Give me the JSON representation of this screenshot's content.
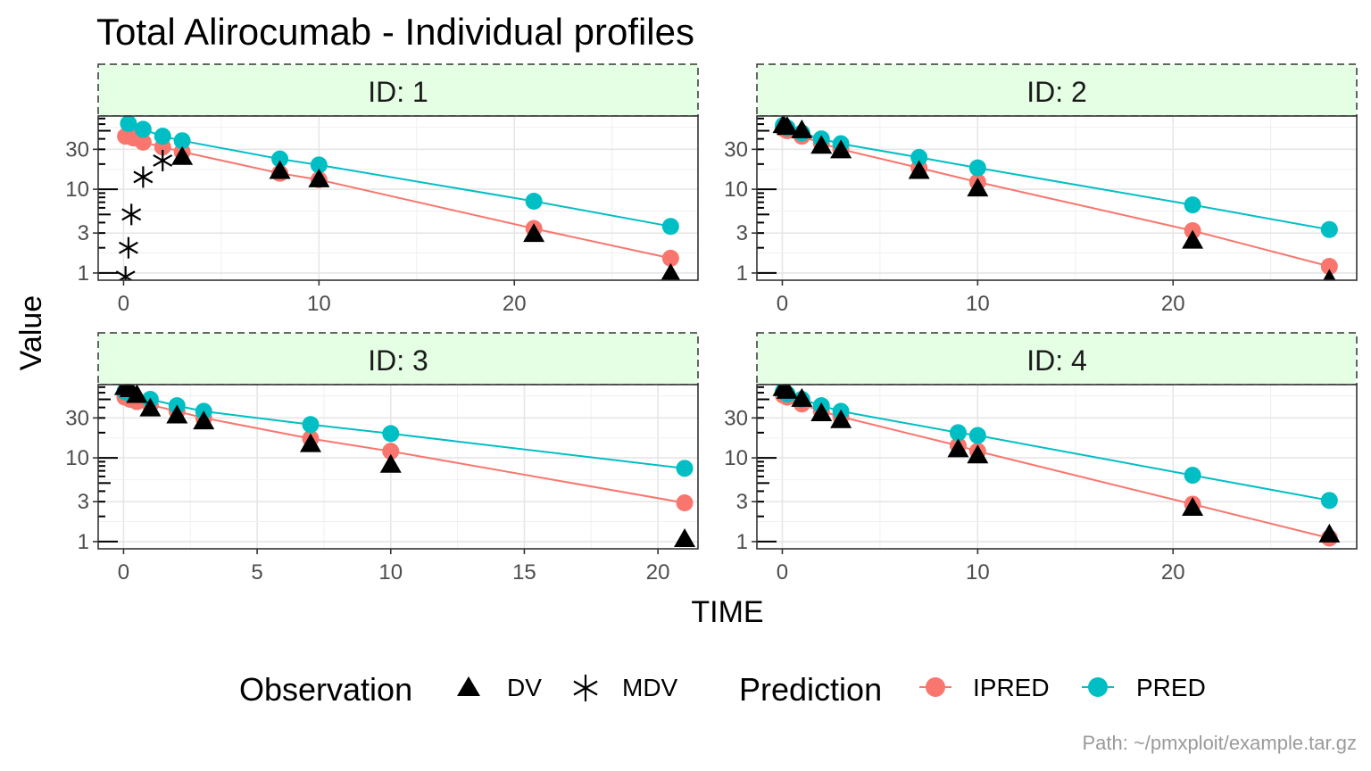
{
  "chart_data": {
    "type": "line",
    "title": "Total Alirocumab - Individual profiles",
    "xlabel": "TIME",
    "ylabel": "Value",
    "y_scale": "log10",
    "y_ticks": [
      1,
      3,
      10,
      30
    ],
    "y_tick_labels": [
      "1",
      "3",
      "10",
      "30"
    ],
    "grid": true,
    "legend_position": "bottom",
    "caption": "Path: ~/pmxploit/example.tar.gz",
    "colors": {
      "IPRED": "#F8766D",
      "PRED": "#00BFC4",
      "DV": "#000000",
      "MDV": "#000000",
      "strip_bg": "#E5FFE5"
    },
    "legend": {
      "observation_title": "Observation",
      "observation_items": [
        "DV",
        "MDV"
      ],
      "prediction_title": "Prediction",
      "prediction_items": [
        "IPRED",
        "PRED"
      ]
    },
    "panels": [
      {
        "strip": "ID: 1",
        "xlim": [
          -1.3,
          29.4
        ],
        "x_ticks": [
          0,
          10,
          20
        ],
        "x_tick_labels": [
          "0",
          "10",
          "20"
        ],
        "ylim": [
          0.82,
          75
        ],
        "pred": [
          [
            0.25,
            61
          ],
          [
            1,
            52
          ],
          [
            2,
            43
          ],
          [
            3,
            38
          ],
          [
            8,
            23
          ],
          [
            10,
            19.5
          ],
          [
            21,
            7.2
          ],
          [
            28,
            3.6
          ]
        ],
        "ipred": [
          [
            0.1,
            43
          ],
          [
            0.5,
            41
          ],
          [
            1,
            36.5
          ],
          [
            2,
            32
          ],
          [
            3,
            28
          ],
          [
            8,
            15.5
          ],
          [
            10,
            13
          ],
          [
            21,
            3.4
          ],
          [
            28,
            1.5
          ]
        ],
        "dv": [
          [
            3,
            25
          ],
          [
            8,
            17
          ],
          [
            10,
            13.5
          ],
          [
            21,
            3
          ],
          [
            28,
            1
          ]
        ],
        "mdv": [
          [
            0.1,
            0.9
          ],
          [
            0.25,
            2
          ],
          [
            0.4,
            5
          ],
          [
            1,
            14
          ],
          [
            2,
            22
          ]
        ]
      },
      {
        "strip": "ID: 2",
        "xlim": [
          -1.3,
          29.4
        ],
        "x_ticks": [
          0,
          10,
          20
        ],
        "x_tick_labels": [
          "0",
          "10",
          "20"
        ],
        "ylim": [
          0.82,
          75
        ],
        "pred": [
          [
            0.05,
            58
          ],
          [
            0.25,
            54
          ],
          [
            1,
            47
          ],
          [
            2,
            40
          ],
          [
            3,
            35
          ],
          [
            7,
            24
          ],
          [
            10,
            18
          ],
          [
            21,
            6.5
          ],
          [
            28,
            3.3
          ]
        ],
        "ipred": [
          [
            0.05,
            53
          ],
          [
            0.25,
            50
          ],
          [
            1,
            43
          ],
          [
            2,
            35.5
          ],
          [
            3,
            30
          ],
          [
            7,
            18
          ],
          [
            10,
            12.2
          ],
          [
            21,
            3.2
          ],
          [
            28,
            1.2
          ]
        ],
        "dv": [
          [
            0.05,
            60
          ],
          [
            0.25,
            57
          ],
          [
            1,
            52
          ],
          [
            2,
            34
          ],
          [
            3,
            30
          ],
          [
            7,
            17
          ],
          [
            10,
            10.5
          ],
          [
            21,
            2.5
          ],
          [
            28,
            0.85
          ]
        ],
        "mdv": []
      },
      {
        "strip": "ID: 3",
        "xlim": [
          -0.95,
          21.5
        ],
        "x_ticks": [
          0,
          5,
          10,
          15,
          20
        ],
        "x_tick_labels": [
          "0",
          "5",
          "10",
          "15",
          "20"
        ],
        "ylim": [
          0.82,
          75
        ],
        "pred": [
          [
            0.05,
            62
          ],
          [
            0.25,
            58
          ],
          [
            1,
            50
          ],
          [
            2,
            42
          ],
          [
            3,
            36
          ],
          [
            7,
            25
          ],
          [
            10,
            19.5
          ],
          [
            21,
            7.5
          ]
        ],
        "ipred": [
          [
            0.05,
            53
          ],
          [
            0.25,
            50
          ],
          [
            0.5,
            47
          ],
          [
            1,
            43
          ],
          [
            2,
            36
          ],
          [
            3,
            30
          ],
          [
            7,
            17
          ],
          [
            10,
            12
          ],
          [
            21,
            2.9
          ]
        ],
        "dv": [
          [
            0.05,
            72
          ],
          [
            0.25,
            68
          ],
          [
            0.5,
            58
          ],
          [
            1,
            40
          ],
          [
            2,
            33
          ],
          [
            3,
            28
          ],
          [
            7,
            15
          ],
          [
            10,
            8.5
          ],
          [
            21,
            1.1
          ]
        ],
        "mdv": []
      },
      {
        "strip": "ID: 4",
        "xlim": [
          -1.3,
          29.4
        ],
        "x_ticks": [
          0,
          10,
          20
        ],
        "x_tick_labels": [
          "0",
          "10",
          "20"
        ],
        "ylim": [
          0.82,
          75
        ],
        "pred": [
          [
            0.05,
            62
          ],
          [
            0.25,
            58
          ],
          [
            1,
            50
          ],
          [
            2,
            42
          ],
          [
            3,
            36
          ],
          [
            9,
            20
          ],
          [
            10,
            18.5
          ],
          [
            21,
            6.2
          ],
          [
            28,
            3.1
          ]
        ],
        "ipred": [
          [
            0.05,
            56
          ],
          [
            0.25,
            53
          ],
          [
            1,
            44
          ],
          [
            2,
            36
          ],
          [
            3,
            31
          ],
          [
            9,
            14
          ],
          [
            10,
            12
          ],
          [
            21,
            2.8
          ],
          [
            28,
            1.1
          ]
        ],
        "dv": [
          [
            0.05,
            70
          ],
          [
            0.25,
            65
          ],
          [
            1,
            52
          ],
          [
            2,
            35
          ],
          [
            3,
            29
          ],
          [
            9,
            13
          ],
          [
            10,
            11
          ],
          [
            21,
            2.6
          ],
          [
            28,
            1.25
          ]
        ],
        "mdv": []
      }
    ]
  }
}
